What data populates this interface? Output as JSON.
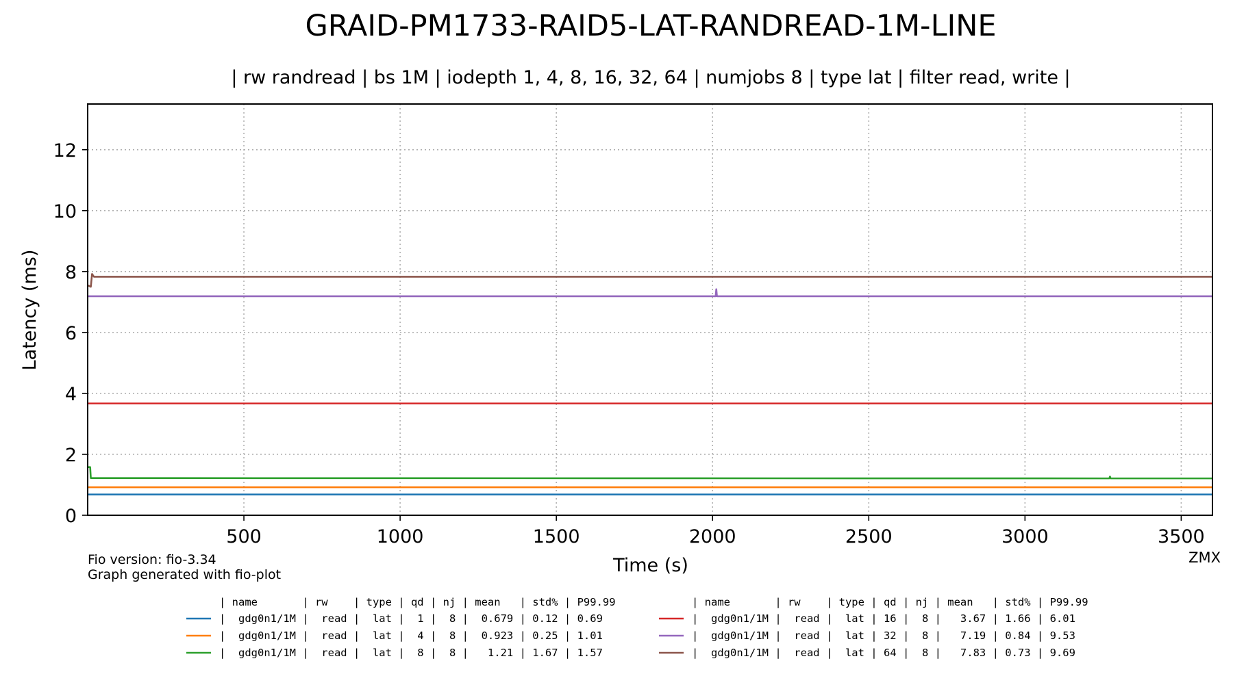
{
  "chart_data": {
    "type": "line",
    "title": "GRAID-PM1733-RAID5-LAT-RANDREAD-1M-LINE",
    "subtitle": "| rw randread | bs 1M | iodepth 1, 4, 8, 16, 32, 64 | numjobs 8 | type lat | filter read, write |",
    "xlabel": "Time (s)",
    "ylabel": "Latency (ms)",
    "xlim": [
      0,
      3600
    ],
    "ylim": [
      0,
      13.5
    ],
    "xticks": [
      500,
      1000,
      1500,
      2000,
      2500,
      3000,
      3500
    ],
    "yticks": [
      0,
      2,
      4,
      6,
      8,
      10,
      12
    ],
    "grid": true,
    "legend_placement": "bottom",
    "series": [
      {
        "name": "gdg0n1/1M",
        "color": "#1f77b4",
        "level": 0.679,
        "points": [
          [
            0,
            0.68
          ],
          [
            3600,
            0.68
          ]
        ]
      },
      {
        "name": "gdg0n1/1M",
        "color": "#ff7f0e",
        "level": 0.923,
        "points": [
          [
            0,
            0.92
          ],
          [
            3600,
            0.92
          ]
        ]
      },
      {
        "name": "gdg0n1/1M",
        "color": "#2ca02c",
        "level": 1.21,
        "points": [
          [
            0,
            1.58
          ],
          [
            8,
            1.58
          ],
          [
            10,
            1.22
          ],
          [
            3270,
            1.21
          ],
          [
            3272,
            1.27
          ],
          [
            3274,
            1.21
          ],
          [
            3600,
            1.21
          ]
        ]
      },
      {
        "name": "gdg0n1/1M",
        "color": "#d62728",
        "level": 3.67,
        "points": [
          [
            0,
            3.67
          ],
          [
            3600,
            3.67
          ]
        ]
      },
      {
        "name": "gdg0n1/1M",
        "color": "#9467bd",
        "level": 7.19,
        "points": [
          [
            0,
            7.19
          ],
          [
            2010,
            7.19
          ],
          [
            2012,
            7.42
          ],
          [
            2014,
            7.19
          ],
          [
            3600,
            7.19
          ]
        ]
      },
      {
        "name": "gdg0n1/1M",
        "color": "#8c564b",
        "level": 7.83,
        "points": [
          [
            0,
            7.55
          ],
          [
            10,
            7.5
          ],
          [
            14,
            7.92
          ],
          [
            20,
            7.83
          ],
          [
            3600,
            7.83
          ]
        ]
      }
    ],
    "annotations": {
      "fio_version": "Fio version: fio-3.34",
      "generated": "Graph generated with fio-plot",
      "author": "ZMX"
    },
    "table": {
      "header": "| name       | rw    | type | qd | nj | mean   | std% | P99.99",
      "rows": [
        "|  gdg0n1/1M |  read |  lat |  1 |  8 |  0.679 | 0.12 | 0.69",
        "|  gdg0n1/1M |  read |  lat |  4 |  8 |  0.923 | 0.25 | 1.01",
        "|  gdg0n1/1M |  read |  lat |  8 |  8 |   1.21 | 1.67 | 1.57",
        "|  gdg0n1/1M |  read |  lat | 16 |  8 |   3.67 | 1.66 | 6.01",
        "|  gdg0n1/1M |  read |  lat | 32 |  8 |   7.19 | 0.84 | 9.53",
        "|  gdg0n1/1M |  read |  lat | 64 |  8 |   7.83 | 0.73 | 9.69"
      ]
    }
  }
}
